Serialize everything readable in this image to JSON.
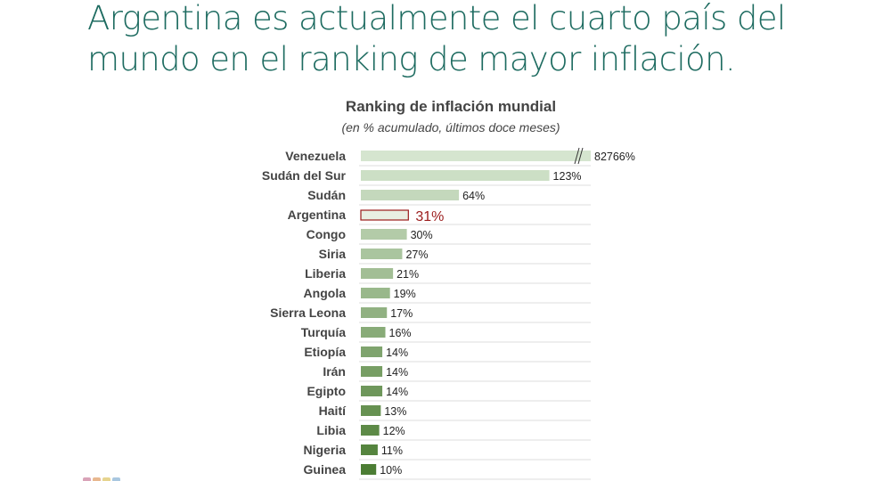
{
  "headline": "Argentina es actualmente el cuarto país del mundo en el ranking de mayor inflación.",
  "chart_data": {
    "type": "bar",
    "orientation": "horizontal",
    "title": "Ranking de inflación mundial",
    "subtitle": "(en % acumulado, últimos doce meses)",
    "categories": [
      "Venezuela",
      "Sudán del Sur",
      "Sudán",
      "Argentina",
      "Congo",
      "Siria",
      "Liberia",
      "Angola",
      "Sierra Leona",
      "Turquía",
      "Etiopía",
      "Irán",
      "Egipto",
      "Haití",
      "Libia",
      "Nigeria",
      "Guinea"
    ],
    "values": [
      82766,
      123,
      64,
      31,
      30,
      27,
      21,
      19,
      17,
      16,
      14,
      14,
      14,
      13,
      12,
      11,
      10
    ],
    "labels": [
      "82766%",
      "123%",
      "64%",
      "31%",
      "30%",
      "27%",
      "21%",
      "19%",
      "17%",
      "16%",
      "14%",
      "14%",
      "14%",
      "13%",
      "12%",
      "11%",
      "10%"
    ],
    "highlight": "Argentina",
    "axis_break": "Venezuela",
    "colors": {
      "light": "#d5e5cf",
      "dark": "#4c7d34",
      "highlight": "#9b1c1c",
      "highlight_fill": "#e9efe2"
    }
  }
}
